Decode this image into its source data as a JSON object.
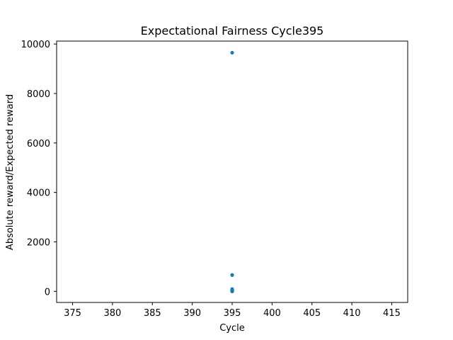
{
  "chart_data": {
    "type": "scatter",
    "title": "Expectational Fairness Cycle395",
    "xlabel": "Cycle",
    "ylabel": "Absolute reward/Expected reward",
    "xlim": [
      373,
      417
    ],
    "ylim": [
      -450,
      10120
    ],
    "x_ticks": [
      375,
      380,
      385,
      390,
      395,
      400,
      405,
      410,
      415
    ],
    "y_ticks": [
      0,
      2000,
      4000,
      6000,
      8000,
      10000
    ],
    "marker_color": "#1f77b4",
    "grid": false,
    "points": [
      {
        "x": 395,
        "y": 9650
      },
      {
        "x": 395,
        "y": 660
      },
      {
        "x": 395,
        "y": 90
      },
      {
        "x": 395,
        "y": 55
      },
      {
        "x": 395,
        "y": 30
      },
      {
        "x": 395,
        "y": 15
      },
      {
        "x": 395,
        "y": 8
      },
      {
        "x": 395,
        "y": 3
      },
      {
        "x": 395,
        "y": 1
      }
    ]
  }
}
